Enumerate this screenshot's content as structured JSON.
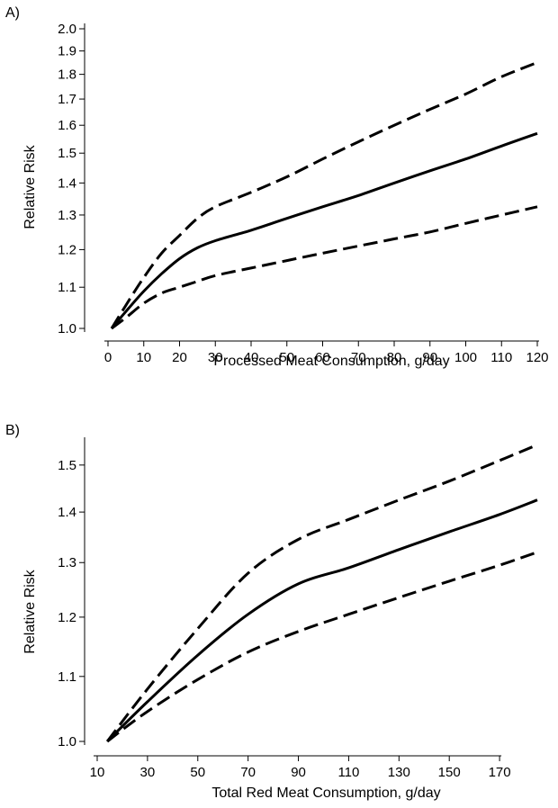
{
  "chart_data": [
    {
      "panel": "A)",
      "type": "line",
      "xlabel": "Processed Meat Consumption, g/day",
      "ylabel": "Relative Risk",
      "xlim": [
        0,
        120
      ],
      "ylim": [
        1.0,
        2.0
      ],
      "yscale": "log",
      "xticks": [
        0,
        10,
        20,
        30,
        40,
        50,
        60,
        70,
        80,
        90,
        100,
        110,
        120
      ],
      "yticks": [
        1.0,
        1.1,
        1.2,
        1.3,
        1.4,
        1.5,
        1.6,
        1.7,
        1.8,
        1.9,
        2.0
      ],
      "ytick_labels": [
        "1.0",
        "1.1",
        "1.2",
        "1.3",
        "1.4",
        "1.5",
        "1.6",
        "1.7",
        "1.8",
        "1.9",
        "2.0"
      ],
      "grid": false,
      "series": [
        {
          "style": "dashed",
          "x": [
            1,
            5,
            10,
            15,
            20,
            25,
            30,
            40,
            50,
            60,
            70,
            80,
            90,
            100,
            110,
            120
          ],
          "y": [
            1.0,
            1.055,
            1.125,
            1.19,
            1.24,
            1.29,
            1.325,
            1.37,
            1.42,
            1.48,
            1.54,
            1.6,
            1.66,
            1.72,
            1.79,
            1.85
          ]
        },
        {
          "style": "solid",
          "x": [
            1,
            5,
            10,
            15,
            20,
            25,
            30,
            40,
            50,
            60,
            70,
            80,
            90,
            100,
            110,
            120
          ],
          "y": [
            1.0,
            1.04,
            1.09,
            1.135,
            1.175,
            1.205,
            1.225,
            1.255,
            1.29,
            1.325,
            1.36,
            1.4,
            1.44,
            1.48,
            1.525,
            1.57
          ]
        },
        {
          "style": "dashed",
          "x": [
            1,
            5,
            10,
            15,
            20,
            25,
            30,
            40,
            50,
            60,
            70,
            80,
            90,
            100,
            110,
            120
          ],
          "y": [
            1.0,
            1.025,
            1.06,
            1.085,
            1.1,
            1.115,
            1.13,
            1.15,
            1.17,
            1.19,
            1.21,
            1.23,
            1.25,
            1.275,
            1.3,
            1.325
          ]
        }
      ]
    },
    {
      "panel": "B)",
      "type": "line",
      "xlabel": "Total Red Meat Consumption, g/day",
      "ylabel": "Relative Risk",
      "xlim": [
        10,
        185
      ],
      "ylim": [
        1.0,
        1.55
      ],
      "yscale": "log",
      "xticks": [
        10,
        30,
        50,
        70,
        90,
        110,
        130,
        150,
        170
      ],
      "yticks": [
        1.0,
        1.1,
        1.2,
        1.3,
        1.4,
        1.5
      ],
      "ytick_labels": [
        "1.0",
        "1.1",
        "1.2",
        "1.3",
        "1.4",
        "1.5"
      ],
      "grid": false,
      "series": [
        {
          "style": "dashed",
          "x": [
            14,
            30,
            50,
            70,
            90,
            110,
            130,
            150,
            170,
            185
          ],
          "y": [
            1.0,
            1.08,
            1.18,
            1.28,
            1.345,
            1.385,
            1.425,
            1.465,
            1.51,
            1.545
          ]
        },
        {
          "style": "solid",
          "x": [
            14,
            30,
            50,
            70,
            90,
            110,
            130,
            150,
            170,
            185
          ],
          "y": [
            1.0,
            1.06,
            1.135,
            1.205,
            1.26,
            1.29,
            1.325,
            1.36,
            1.395,
            1.425
          ]
        },
        {
          "style": "dashed",
          "x": [
            14,
            30,
            50,
            70,
            90,
            110,
            130,
            150,
            170,
            185
          ],
          "y": [
            1.0,
            1.045,
            1.095,
            1.14,
            1.175,
            1.205,
            1.235,
            1.265,
            1.295,
            1.32
          ]
        }
      ]
    }
  ]
}
